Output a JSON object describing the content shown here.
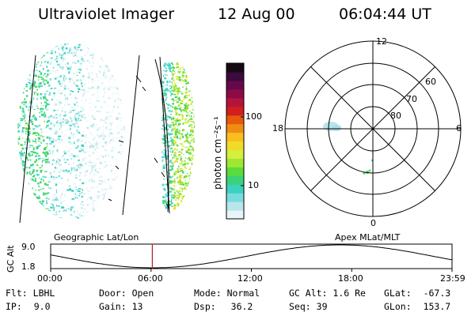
{
  "header": {
    "instrument": "Ultraviolet Imager",
    "date": "12 Aug 00",
    "time": "06:04:44 UT"
  },
  "colorbar": {
    "unit_label": "photon cm⁻²s⁻¹",
    "ticks": [
      "100",
      "10"
    ],
    "colors": [
      "#e8f4f6",
      "#b8e6ea",
      "#78dcdc",
      "#3cd2c0",
      "#3cd27a",
      "#5adc3c",
      "#a0e632",
      "#d2f03c",
      "#f0dc28",
      "#fabe1e",
      "#f08c14",
      "#e65a0a",
      "#d21e1e",
      "#b4143c",
      "#8c0a46",
      "#640a4b",
      "#3c0a3c",
      "#140a14"
    ]
  },
  "polar_plot": {
    "mlt_labels": {
      "top": "12",
      "left": "18",
      "right": "6",
      "bottom": "0"
    },
    "lat_labels": [
      "60",
      "70",
      "80"
    ]
  },
  "timeline": {
    "left_caption": "Geographic Lat/Lon",
    "right_caption": "Apex MLat/MLT",
    "axis_title": "GC Alt",
    "y_labels": [
      "9.0",
      "1.8"
    ],
    "x_labels": [
      "00:00",
      "06:00",
      "12:00",
      "18:00",
      "23:59"
    ],
    "current_time_fraction": 0.2533
  },
  "status": {
    "row1": [
      {
        "label": "Flt:",
        "value": "LBHL"
      },
      {
        "label": "Door:",
        "value": "Open"
      },
      {
        "label": "Mode:",
        "value": "Normal"
      },
      {
        "label": "GC Alt:",
        "value": "1.6 Re"
      },
      {
        "label": "GLat:",
        "value": "-67.3"
      }
    ],
    "row2": [
      {
        "label": "IP:",
        "value": "9.0"
      },
      {
        "label": "Gain:",
        "value": "13"
      },
      {
        "label": "Dsp:",
        "value": "36.2"
      },
      {
        "label": "Seq:",
        "value": "39"
      },
      {
        "label": "GLon:",
        "value": "153.7"
      }
    ]
  }
}
